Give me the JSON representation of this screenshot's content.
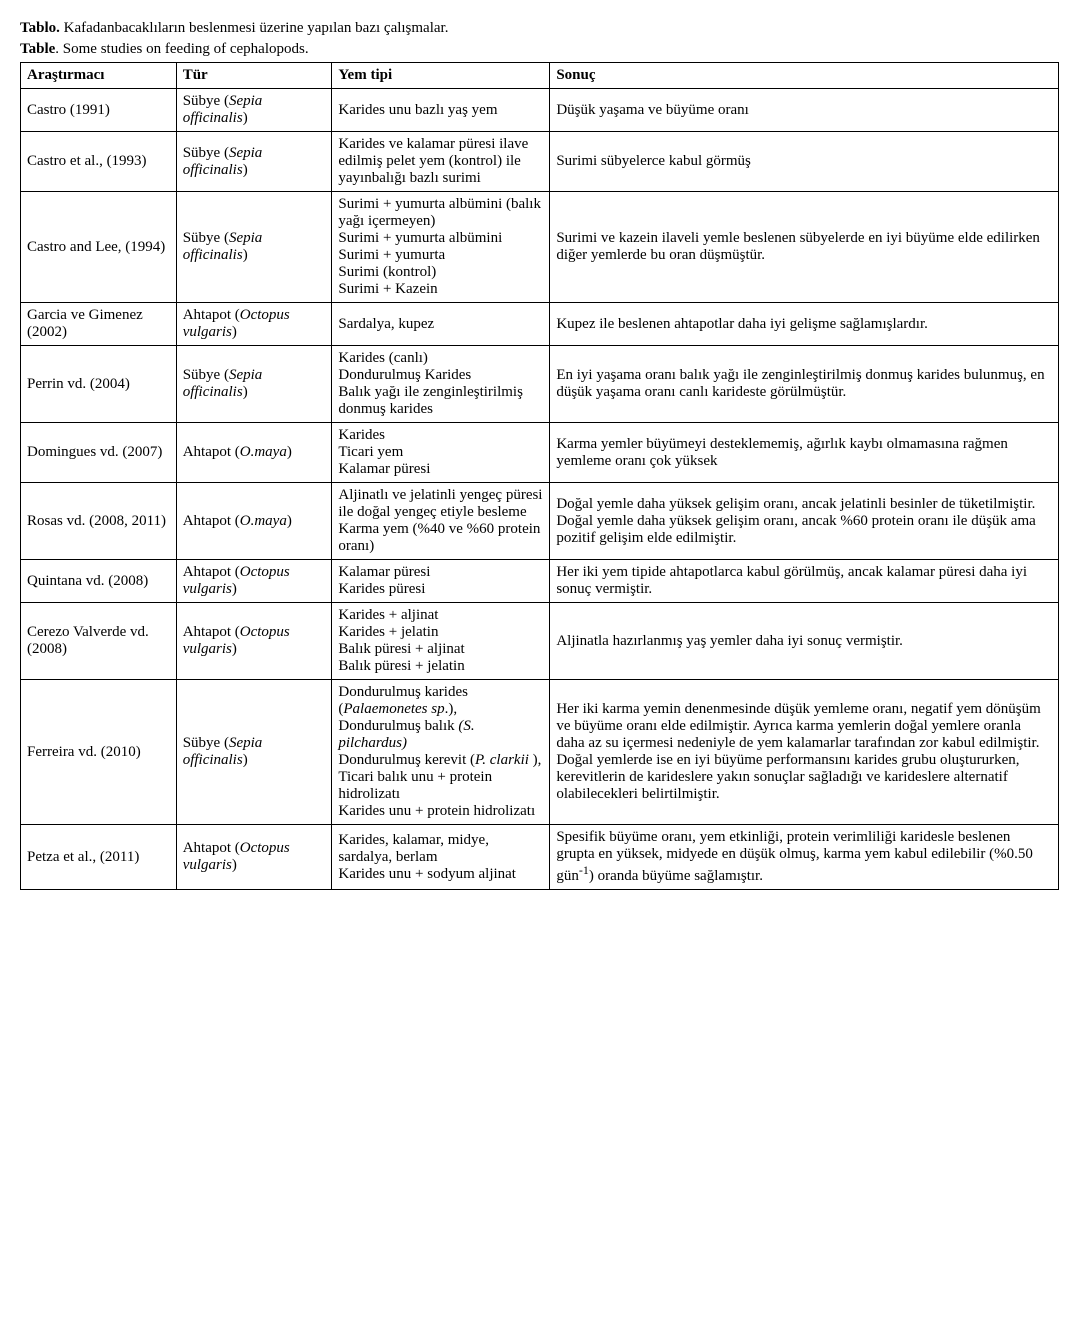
{
  "captions": {
    "tr_label": "Tablo.",
    "tr_text": " Kafadanbacaklıların beslenmesi üzerine yapılan bazı çalışmalar.",
    "en_label": "Table",
    "en_text": ". Some studies on feeding of cephalopods."
  },
  "headers": {
    "researcher": "Araştırmacı",
    "species": "Tür",
    "feed": "Yem tipi",
    "result": "Sonuç"
  },
  "rows": [
    {
      "researcher": "Castro (1991)",
      "species_common": "Sübye (",
      "species_latin": "Sepia officinalis",
      "species_close": ")",
      "feed_html": "Karides unu bazlı yaş yem",
      "result_html": "Düşük yaşama ve büyüme oranı"
    },
    {
      "researcher": "Castro et al., (1993)",
      "species_common": "Sübye (",
      "species_latin": "Sepia officinalis",
      "species_close": ")",
      "feed_html": "Karides ve kalamar püresi ilave edilmiş pelet yem (kontrol) ile yayınbalığı bazlı surimi",
      "result_html": "Surimi sübyelerce kabul görmüş"
    },
    {
      "researcher": "Castro and Lee, (1994)",
      "species_common": "Sübye (",
      "species_latin": "Sepia officinalis",
      "species_close": ")",
      "feed_html": "Surimi + yumurta albümini (balık yağı içermeyen)<br>Surimi + yumurta albümini<br>Surimi + yumurta<br>Surimi  (kontrol)<br>Surimi + Kazein",
      "result_html": "Surimi ve kazein ilaveli yemle beslenen sübyelerde en iyi büyüme elde edilirken diğer yemlerde bu oran düşmüştür."
    },
    {
      "researcher": "Garcia ve Gimenez (2002)",
      "species_common": "Ahtapot (",
      "species_latin": "Octopus vulgaris",
      "species_close": ")",
      "feed_html": "Sardalya, kupez",
      "result_html": "Kupez ile beslenen ahtapotlar daha iyi gelişme sağlamışlardır."
    },
    {
      "researcher": "Perrin vd. (2004)",
      "species_common": "Sübye (",
      "species_latin": "Sepia officinalis",
      "species_close": ")",
      "feed_html": "Karides (canlı)<br>Dondurulmuş Karides<br>Balık yağı ile zenginleştirilmiş donmuş karides",
      "result_html": "En iyi yaşama oranı balık yağı ile zenginleştirilmiş donmuş karides bulunmuş, en düşük yaşama oranı canlı karideste görülmüştür."
    },
    {
      "researcher": "Domingues vd. (2007)",
      "species_common": "Ahtapot (",
      "species_latin": "O.maya",
      "species_close": ")",
      "feed_html": "Karides<br>Ticari yem<br>Kalamar püresi",
      "result_html": "Karma yemler büyümeyi desteklememiş, ağırlık kaybı olmamasına rağmen yemleme oranı çok yüksek"
    },
    {
      "researcher": "Rosas vd. (2008, 2011)",
      "species_common": "Ahtapot (",
      "species_latin": "O.maya",
      "species_close": ")",
      "feed_html": "Aljinatlı ve jelatinli yengeç püresi ile doğal yengeç etiyle besleme<br>Karma yem (%40 ve %60 protein oranı)",
      "result_html": "Doğal yemle daha yüksek gelişim oranı, ancak jelatinli besinler de tüketilmiştir.<br>Doğal yemle daha yüksek gelişim oranı, ancak %60 protein oranı ile düşük ama pozitif gelişim elde edilmiştir."
    },
    {
      "researcher": "Quintana vd. (2008)",
      "species_common": "Ahtapot (",
      "species_latin": "Octopus vulgaris",
      "species_close": ")",
      "feed_html": "Kalamar püresi<br>Karides püresi",
      "result_html": "Her iki yem tipide ahtapotlarca kabul görülmüş, ancak kalamar püresi daha iyi sonuç vermiştir."
    },
    {
      "researcher": "Cerezo Valverde vd. (2008)",
      "species_common": "Ahtapot (",
      "species_latin": "Octopus vulgaris",
      "species_close": ")",
      "feed_html": "Karides + aljinat<br>Karides + jelatin<br>Balık püresi + aljinat<br>Balık püresi + jelatin",
      "result_html": "Aljinatla hazırlanmış yaş yemler daha iyi sonuç vermiştir."
    },
    {
      "researcher": "Ferreira vd. (2010)",
      "species_common": "Sübye (",
      "species_latin": "Sepia officinalis",
      "species_close": ")",
      "feed_html": "Dondurulmuş karides (<i>Palaemonetes sp</i>.),<br>Dondurulmuş balık <i>(S. pilchardus)</i><br>Dondurulmuş kerevit (<i>P. clarkii </i>),<br>Ticari balık unu + protein hidrolizatı<br>Karides unu + protein hidrolizatı",
      "result_html": "Her iki karma yemin denenmesinde düşük yemleme oranı, negatif yem dönüşüm ve büyüme oranı elde edilmiştir. Ayrıca karma yemlerin doğal yemlere oranla daha az su içermesi nedeniyle de yem kalamarlar tarafından zor kabul edilmiştir. Doğal yemlerde ise en iyi büyüme performansını karides grubu oluştururken, kerevitlerin de karideslere yakın sonuçlar sağladığı ve karideslere alternatif olabilecekleri belirtilmiştir."
    },
    {
      "researcher": "Petza et al., (2011)",
      "species_common": "Ahtapot (",
      "species_latin": "Octopus vulgaris",
      "species_close": ")",
      "feed_html": "Karides, kalamar, midye, sardalya, berlam<br>Karides unu + sodyum aljinat",
      "result_html": "Spesifik büyüme oranı, yem etkinliği, protein verimliliği karidesle beslenen grupta en yüksek, midyede en düşük olmuş, karma yem kabul edilebilir (%0.50 gün<span class=\"sup\">-1</span>) oranda büyüme sağlamıştır."
    }
  ]
}
